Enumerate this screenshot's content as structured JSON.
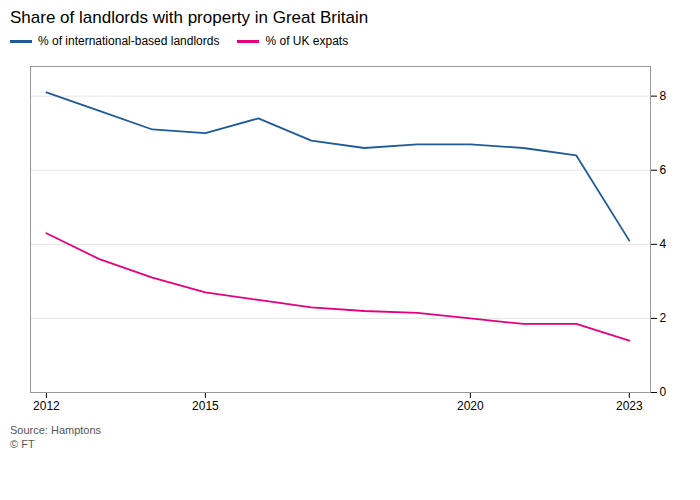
{
  "chart_data": {
    "type": "line",
    "title": "Share of landlords with property in Great Britain",
    "x": [
      2012,
      2013,
      2014,
      2015,
      2016,
      2017,
      2018,
      2019,
      2020,
      2021,
      2022,
      2023
    ],
    "series": [
      {
        "name": "% of international-based landlords",
        "color": "#1f5b99",
        "values": [
          8.1,
          7.6,
          7.1,
          7.0,
          7.4,
          6.8,
          6.6,
          6.7,
          6.7,
          6.6,
          6.4,
          4.1
        ]
      },
      {
        "name": "% of UK expats",
        "color": "#e6007e",
        "values": [
          4.3,
          3.6,
          3.1,
          2.7,
          2.5,
          2.3,
          2.2,
          2.15,
          2.0,
          1.85,
          1.85,
          1.4
        ]
      }
    ],
    "xlim": [
      2011.7,
      2023.4
    ],
    "xticks": [
      2012,
      2015,
      2020,
      2023
    ],
    "ylim": [
      0,
      8.8
    ],
    "yticks": [
      0,
      2,
      4,
      6,
      8
    ],
    "grid": true,
    "legend": "top",
    "annotations": [
      "Source: Hamptons",
      "© FT"
    ]
  }
}
